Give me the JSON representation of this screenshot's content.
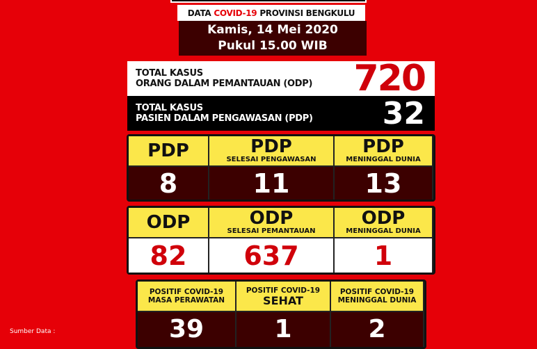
{
  "header": {
    "prefix": "DATA",
    "highlight": "COVID-19",
    "suffix": "PROVINSI BENGKULU",
    "highlight_color": "#e60008"
  },
  "date": {
    "day": "Kamis, 14 Mei 2020",
    "time": "Pukul 15.00 WIB"
  },
  "totals": [
    {
      "line1": "TOTAL KASUS",
      "line2": "ORANG DALAM PEMANTAUAN (ODP)",
      "value": "720"
    },
    {
      "line1": "TOTAL KASUS",
      "line2": "PASIEN DALAM PENGAWASAN (PDP)",
      "value": "32"
    }
  ],
  "pdp": [
    {
      "title": "PDP",
      "subtitle": "",
      "value": "8"
    },
    {
      "title": "PDP",
      "subtitle": "SELESAI PENGAWASAN",
      "value": "11"
    },
    {
      "title": "PDP",
      "subtitle": "MENINGGAL DUNIA",
      "value": "13"
    }
  ],
  "odp": [
    {
      "title": "ODP",
      "subtitle": "",
      "value": "82"
    },
    {
      "title": "ODP",
      "subtitle": "SELESAI PEMANTAUAN",
      "value": "637"
    },
    {
      "title": "ODP",
      "subtitle": "MENINGGAL DUNIA",
      "value": "1"
    }
  ],
  "positif": [
    {
      "line1": "POSITIF COVID-19",
      "line2": "MASA PERAWATAN",
      "value": "39"
    },
    {
      "line1": "POSITIF COVID-19",
      "line2": "SEHAT",
      "value": "1"
    },
    {
      "line1": "POSITIF COVID-19",
      "line2": "MENINGGAL DUNIA",
      "value": "2"
    }
  ],
  "source_label": "Sumber Data :"
}
